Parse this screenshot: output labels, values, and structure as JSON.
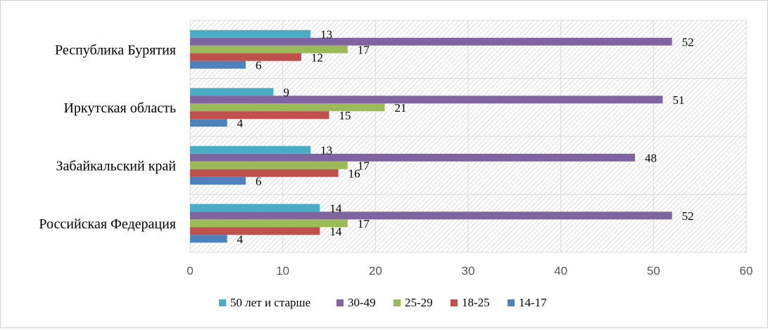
{
  "chart_data": {
    "type": "bar",
    "orientation": "horizontal",
    "title": "",
    "xlabel": "",
    "ylabel": "",
    "xlim": [
      0,
      60
    ],
    "xticks": [
      0,
      10,
      20,
      30,
      40,
      50,
      60
    ],
    "grid": true,
    "legend_position": "bottom",
    "categories": [
      "Республика Бурятия",
      "Иркутская  область",
      "Забайкальский край",
      "Российская Федерация"
    ],
    "series": [
      {
        "name": "50 лет и старше",
        "color": "#4bacc6",
        "values": [
          13,
          9,
          13,
          14
        ]
      },
      {
        "name": "30-49",
        "color": "#8064a2",
        "values": [
          52,
          51,
          48,
          52
        ]
      },
      {
        "name": "25-29",
        "color": "#9bbb59",
        "values": [
          17,
          21,
          17,
          17
        ]
      },
      {
        "name": "18-25",
        "color": "#c0504d",
        "values": [
          12,
          15,
          16,
          14
        ]
      },
      {
        "name": "14-17",
        "color": "#4f81bd",
        "values": [
          6,
          4,
          6,
          4
        ]
      }
    ]
  }
}
